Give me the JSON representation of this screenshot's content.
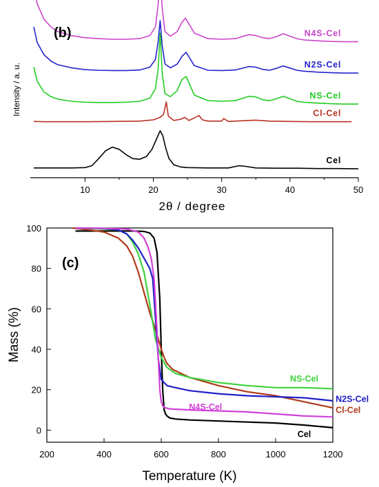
{
  "chart_data": [
    {
      "type": "line",
      "panel_label": "(b)",
      "xlabel": "2θ / degree",
      "ylabel": "Intensity / a. u.",
      "xlim": [
        2,
        50
      ],
      "x_ticks": [
        "10",
        "20",
        "30",
        "40",
        "50"
      ],
      "x_tick_values": [
        10,
        20,
        30,
        40,
        50
      ],
      "grid": false,
      "series": [
        {
          "name": "N4S-Cel",
          "color": "#cc44cc",
          "offset": 4.0,
          "x": [
            2.5,
            3,
            4,
            5,
            6,
            8,
            10,
            12,
            14,
            16,
            18,
            19.5,
            20.3,
            20.7,
            21.0,
            21.3,
            21.7,
            22.5,
            23.5,
            24.2,
            24.7,
            25.2,
            26,
            28,
            30,
            32,
            34,
            35,
            36,
            37,
            38,
            39,
            40,
            41,
            42,
            44,
            46,
            48,
            50
          ],
          "values": [
            1.95,
            1.35,
            0.85,
            0.6,
            0.45,
            0.32,
            0.25,
            0.22,
            0.2,
            0.2,
            0.22,
            0.32,
            0.6,
            1.3,
            2.3,
            1.2,
            0.45,
            0.3,
            0.45,
            0.75,
            0.88,
            0.7,
            0.4,
            0.22,
            0.2,
            0.22,
            0.35,
            0.32,
            0.25,
            0.22,
            0.28,
            0.38,
            0.3,
            0.22,
            0.18,
            0.15,
            0.13,
            0.12,
            0.12
          ]
        },
        {
          "name": "N2S-Cel",
          "color": "#2222cc",
          "offset": 3.0,
          "x": [
            2.5,
            3,
            4,
            5,
            6,
            8,
            10,
            12,
            14,
            16,
            18,
            19.5,
            20.3,
            20.7,
            21.0,
            21.3,
            21.7,
            22.5,
            23.5,
            24.2,
            24.8,
            25.3,
            26,
            28,
            30,
            32,
            34,
            35,
            36,
            37,
            38,
            39,
            40,
            41,
            42,
            44,
            46,
            48,
            50
          ],
          "values": [
            1.6,
            1.1,
            0.7,
            0.5,
            0.38,
            0.28,
            0.22,
            0.2,
            0.19,
            0.19,
            0.21,
            0.3,
            0.55,
            1.1,
            1.8,
            1.0,
            0.4,
            0.28,
            0.4,
            0.65,
            0.78,
            0.6,
            0.35,
            0.2,
            0.19,
            0.21,
            0.32,
            0.3,
            0.23,
            0.2,
            0.26,
            0.34,
            0.27,
            0.2,
            0.17,
            0.14,
            0.12,
            0.11,
            0.11
          ]
        },
        {
          "name": "NS-Cel",
          "color": "#22cc22",
          "offset": 2.0,
          "x": [
            2.5,
            3,
            4,
            5,
            6,
            8,
            10,
            12,
            14,
            16,
            18,
            19.5,
            20.3,
            20.7,
            21.0,
            21.3,
            21.7,
            22.5,
            23.5,
            24.2,
            24.8,
            25.3,
            26,
            28,
            30,
            32,
            34,
            35,
            36,
            37,
            38,
            39,
            40,
            41,
            42,
            44,
            46,
            48,
            50
          ],
          "values": [
            1.3,
            0.85,
            0.5,
            0.35,
            0.27,
            0.2,
            0.17,
            0.16,
            0.16,
            0.17,
            0.2,
            0.3,
            0.6,
            1.2,
            2.4,
            1.1,
            0.45,
            0.35,
            0.55,
            0.9,
            1.0,
            0.75,
            0.4,
            0.22,
            0.2,
            0.22,
            0.36,
            0.34,
            0.25,
            0.22,
            0.28,
            0.36,
            0.28,
            0.2,
            0.17,
            0.14,
            0.12,
            0.11,
            0.11
          ]
        },
        {
          "name": "Cl-Cel",
          "color": "#b83020",
          "offset": 1.5,
          "x": [
            2.5,
            4,
            6,
            10,
            14,
            18,
            20,
            21.0,
            21.5,
            21.9,
            22.2,
            23,
            24,
            24.6,
            25.2,
            25.8,
            26.7,
            27.2,
            28,
            30,
            30.3,
            31,
            33,
            35,
            37,
            40,
            43,
            46,
            49
          ],
          "values": [
            0.05,
            0.04,
            0.04,
            0.04,
            0.05,
            0.06,
            0.1,
            0.18,
            0.28,
            0.68,
            0.22,
            0.08,
            0.12,
            0.18,
            0.08,
            0.14,
            0.24,
            0.1,
            0.06,
            0.06,
            0.14,
            0.05,
            0.07,
            0.09,
            0.06,
            0.05,
            0.04,
            0.04,
            0.04
          ]
        },
        {
          "name": "Cel",
          "color": "#000000",
          "offset": 0.0,
          "x": [
            2.5,
            5,
            8,
            10,
            11,
            12,
            13,
            14,
            15,
            16,
            17,
            18,
            19,
            19.8,
            20.5,
            21.0,
            21.4,
            21.8,
            22.3,
            23,
            24,
            25,
            28,
            31,
            32.5,
            33.5,
            35,
            38,
            41,
            44,
            47,
            50
          ],
          "values": [
            0.05,
            0.05,
            0.05,
            0.06,
            0.12,
            0.35,
            0.6,
            0.72,
            0.65,
            0.48,
            0.35,
            0.33,
            0.42,
            0.65,
            1.0,
            1.25,
            1.08,
            0.7,
            0.35,
            0.15,
            0.08,
            0.06,
            0.05,
            0.05,
            0.12,
            0.1,
            0.05,
            0.04,
            0.04,
            0.03,
            0.03,
            0.02
          ]
        }
      ]
    },
    {
      "type": "line",
      "panel_label": "(c)",
      "xlabel": "Temperature (K)",
      "ylabel": "Mass (%)",
      "xlim": [
        200,
        1200
      ],
      "ylim": [
        -6,
        100
      ],
      "x_ticks": [
        "200",
        "400",
        "600",
        "800",
        "1000",
        "1200"
      ],
      "x_tick_values": [
        200,
        400,
        600,
        800,
        1000,
        1200
      ],
      "y_ticks": [
        "0",
        "20",
        "40",
        "60",
        "80",
        "100"
      ],
      "y_tick_values": [
        0,
        20,
        40,
        60,
        80,
        100
      ],
      "grid": false,
      "series": [
        {
          "name": "Cel",
          "color": "#000000",
          "x": [
            300,
            400,
            500,
            540,
            560,
            575,
            585,
            595,
            600,
            605,
            610,
            615,
            620,
            630,
            650,
            700,
            800,
            900,
            1000,
            1100,
            1200
          ],
          "values": [
            98.5,
            98.5,
            98.5,
            98.3,
            97.5,
            95,
            88,
            65,
            40,
            20,
            10,
            8,
            7,
            6,
            5.5,
            5,
            4.5,
            4,
            3.5,
            2.5,
            1.2
          ]
        },
        {
          "name": "Cl-Cel",
          "color": "#b03a1a",
          "x": [
            290,
            350,
            400,
            450,
            480,
            500,
            520,
            540,
            560,
            575,
            590,
            600,
            610,
            620,
            640,
            700,
            800,
            900,
            1000,
            1100,
            1200
          ],
          "values": [
            100,
            99,
            98,
            95,
            91,
            86,
            78,
            68,
            58,
            52,
            45,
            40,
            36,
            33,
            30,
            26,
            22,
            19,
            17,
            14,
            11
          ]
        },
        {
          "name": "NS-Cel",
          "color": "#3cd23c",
          "x": [
            300,
            400,
            450,
            480,
            500,
            520,
            540,
            560,
            580,
            600,
            620,
            650,
            700,
            800,
            900,
            1000,
            1100,
            1200
          ],
          "values": [
            100,
            99.5,
            99,
            97,
            93,
            87,
            78,
            62,
            45,
            36,
            31,
            28,
            26,
            23.5,
            22,
            21,
            21,
            20.5
          ]
        },
        {
          "name": "N2S-Cel",
          "color": "#1e1ec8",
          "x": [
            300,
            400,
            450,
            480,
            500,
            520,
            540,
            560,
            570,
            580,
            590,
            600,
            620,
            650,
            700,
            800,
            900,
            1000,
            1100,
            1200
          ],
          "values": [
            100,
            99.8,
            99,
            97,
            94,
            90,
            85,
            80,
            75,
            55,
            35,
            25,
            22,
            21,
            19.5,
            18,
            17,
            16.5,
            16,
            14.5
          ]
        },
        {
          "name": "N4S-Cel",
          "color": "#d040d8",
          "x": [
            300,
            400,
            480,
            520,
            540,
            555,
            565,
            575,
            585,
            595,
            600,
            605,
            615,
            630,
            700,
            800,
            900,
            1000,
            1100,
            1200
          ],
          "values": [
            100,
            99.8,
            99.5,
            98,
            95,
            90,
            85,
            75,
            50,
            20,
            14,
            12,
            11,
            10.5,
            10,
            9.5,
            9,
            8,
            7,
            6.5
          ]
        }
      ]
    }
  ]
}
